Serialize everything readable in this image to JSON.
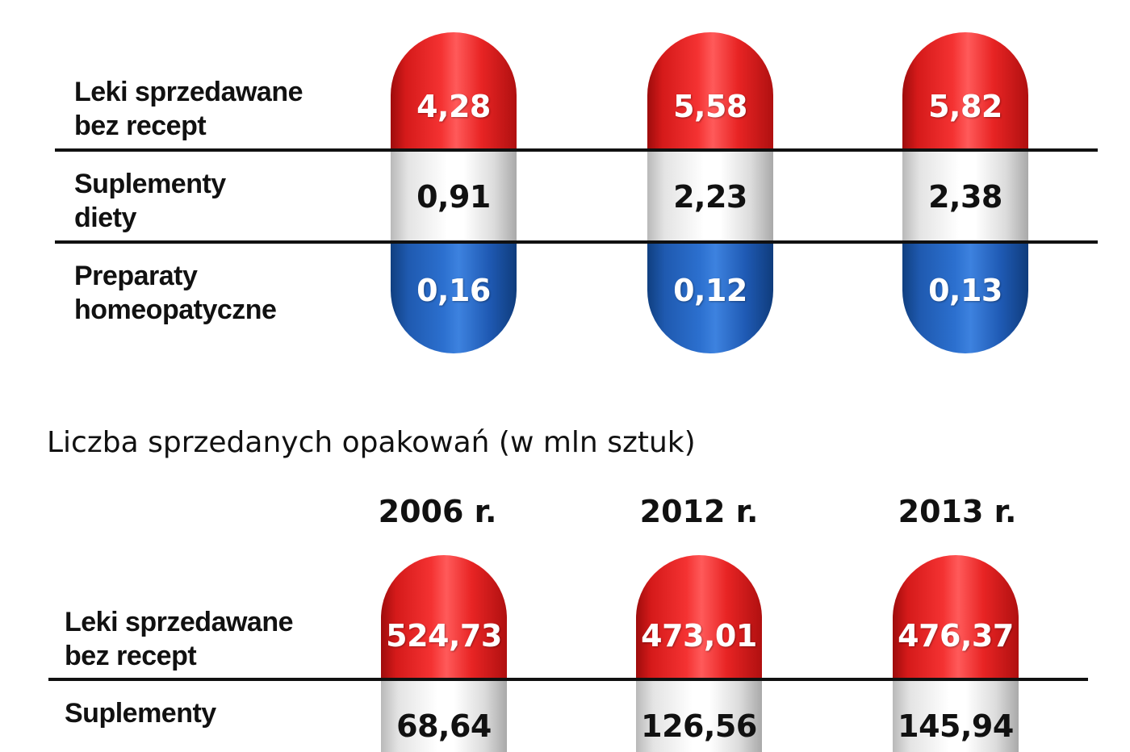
{
  "colors": {
    "otc": "#e82424",
    "supplements": "#f2f2f2",
    "homeopathic": "#1f5ab0"
  },
  "chart_data": [
    {
      "type": "table",
      "title": "",
      "categories": [
        "Leki sprzedawane\nbez recept",
        "Suplementy\ndiety",
        "Preparaty\nhomeopatyczne"
      ],
      "series": [
        {
          "values": [
            "4,28",
            "0,91",
            "0,16"
          ]
        },
        {
          "values": [
            "5,58",
            "2,23",
            "0,12"
          ]
        },
        {
          "values": [
            "5,82",
            "2,38",
            "0,13"
          ]
        }
      ]
    },
    {
      "type": "table",
      "title": "Liczba sprzedanych opakowań (w mln sztuk)",
      "categories": [
        "Leki sprzedawane\nbez recept",
        "Suplementy"
      ],
      "series": [
        {
          "name": "2006 r.",
          "values": [
            "524,73",
            "68,64"
          ]
        },
        {
          "name": "2012 r.",
          "values": [
            "473,01",
            "126,56"
          ]
        },
        {
          "name": "2013 r.",
          "values": [
            "476,37",
            "145,94"
          ]
        }
      ]
    }
  ]
}
